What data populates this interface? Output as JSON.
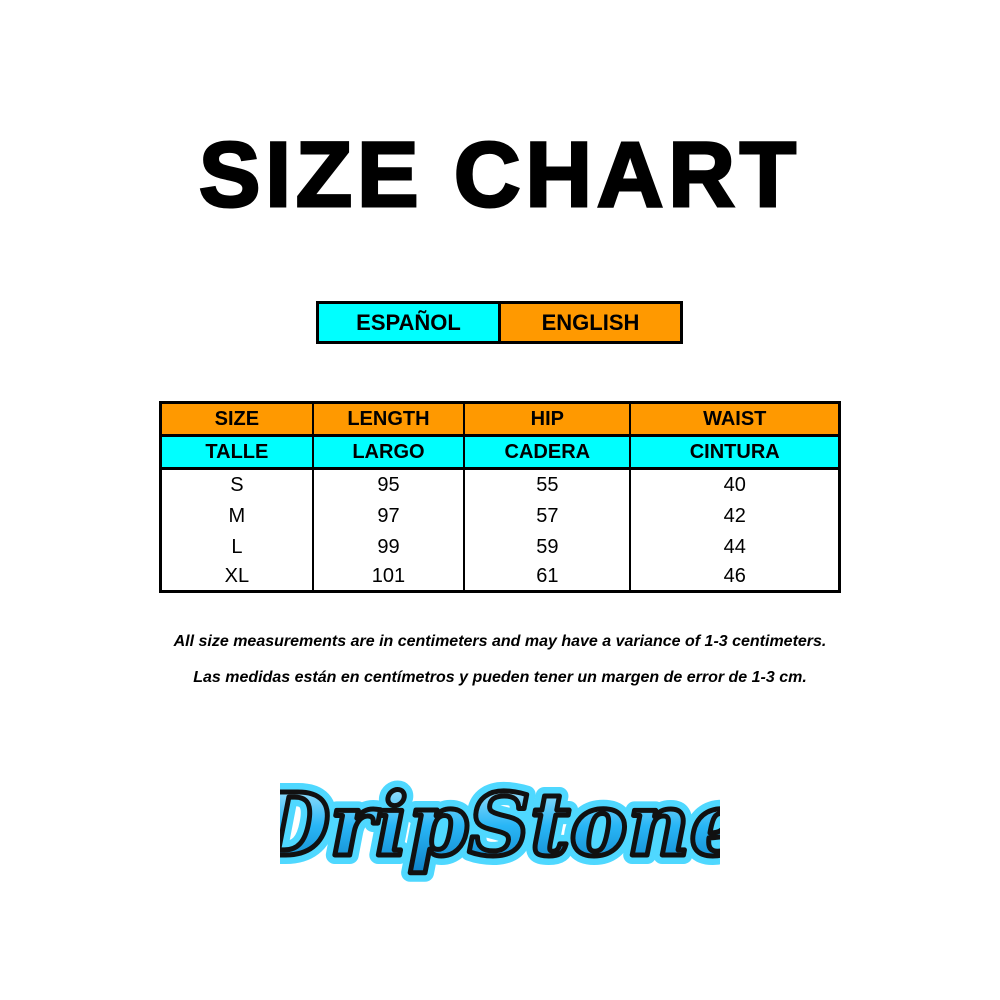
{
  "title": "SIZE CHART",
  "language_toggle": {
    "spanish": "ESPAÑOL",
    "english": "ENGLISH"
  },
  "colors": {
    "orange": "#ff9900",
    "cyan": "#00ffff",
    "logo_blue": "#29b6f6"
  },
  "table": {
    "headers_en": [
      "SIZE",
      "LENGTH",
      "HIP",
      "WAIST"
    ],
    "headers_es": [
      "TALLE",
      "LARGO",
      "CADERA",
      "CINTURA"
    ],
    "rows": [
      [
        "S",
        "95",
        "55",
        "40"
      ],
      [
        "M",
        "97",
        "57",
        "42"
      ],
      [
        "L",
        "99",
        "59",
        "44"
      ],
      [
        "XL",
        "101",
        "61",
        "46"
      ]
    ]
  },
  "notes": {
    "en": "All size measurements are in centimeters and may have a variance of 1-3 centimeters.",
    "es": "Las medidas están en centímetros y pueden tener un margen de error de 1-3 cm."
  },
  "logo": {
    "text": "DripStone"
  }
}
